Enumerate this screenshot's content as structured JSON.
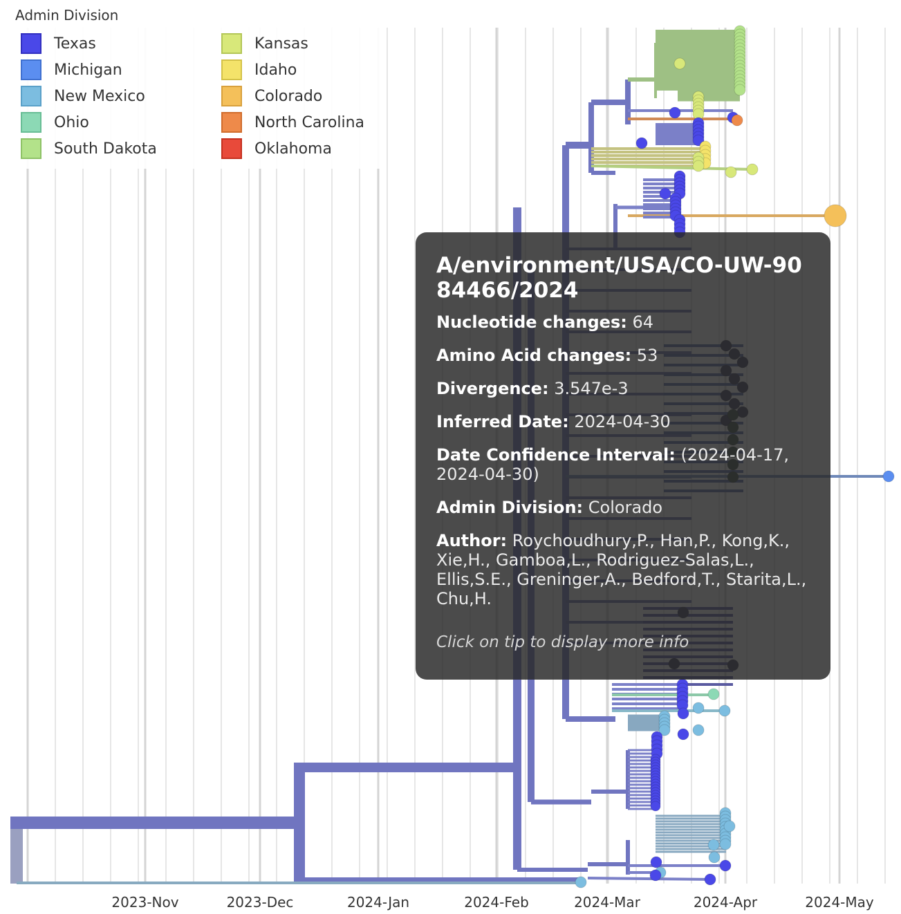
{
  "legend": {
    "title": "Admin Division",
    "items": [
      {
        "label": "Texas",
        "color": "#4a48e8"
      },
      {
        "label": "Michigan",
        "color": "#5b8ef0"
      },
      {
        "label": "New Mexico",
        "color": "#7cbde0"
      },
      {
        "label": "Ohio",
        "color": "#8cd9b5"
      },
      {
        "label": "South Dakota",
        "color": "#b3e28a"
      },
      {
        "label": "Kansas",
        "color": "#d8e87a"
      },
      {
        "label": "Idaho",
        "color": "#f4e36a"
      },
      {
        "label": "Colorado",
        "color": "#f4c05a"
      },
      {
        "label": "North Carolina",
        "color": "#ee8a4a"
      },
      {
        "label": "Oklahoma",
        "color": "#e84a3a"
      }
    ]
  },
  "axis": {
    "ticks": [
      "2023-Nov",
      "2023-Dec",
      "2024-Jan",
      "2024-Feb",
      "2024-Mar",
      "2024-Apr",
      "2024-May"
    ]
  },
  "tooltip": {
    "title": "A/environment/USA/CO-UW-9084466/2024",
    "rows": [
      {
        "key": "Nucleotide changes:",
        "value": "64"
      },
      {
        "key": "Amino Acid changes:",
        "value": "53"
      },
      {
        "key": "Divergence:",
        "value": "3.547e-3"
      },
      {
        "key": "Inferred Date:",
        "value": "2024-04-30"
      },
      {
        "key": "Date Confidence Interval:",
        "value": "(2024-04-17, 2024-04-30)"
      },
      {
        "key": "Admin Division:",
        "value": "Colorado"
      },
      {
        "key": "Author:",
        "value": "Roychoudhury,P., Han,P., Kong,K., Xie,H., Gamboa,L., Rodriguez-Salas,L., Ellis,S.E., Greninger,A., Bedford,T., Starita,L., Chu,H."
      }
    ],
    "footer": "Click on tip to display more info"
  },
  "colors": {
    "trunk": "#7075c0",
    "gray_trunk": "#9aa0c0",
    "grid": "#e6e6e6",
    "grid_major": "#d4d4d4",
    "highlight_tip": "#f4c05a"
  }
}
